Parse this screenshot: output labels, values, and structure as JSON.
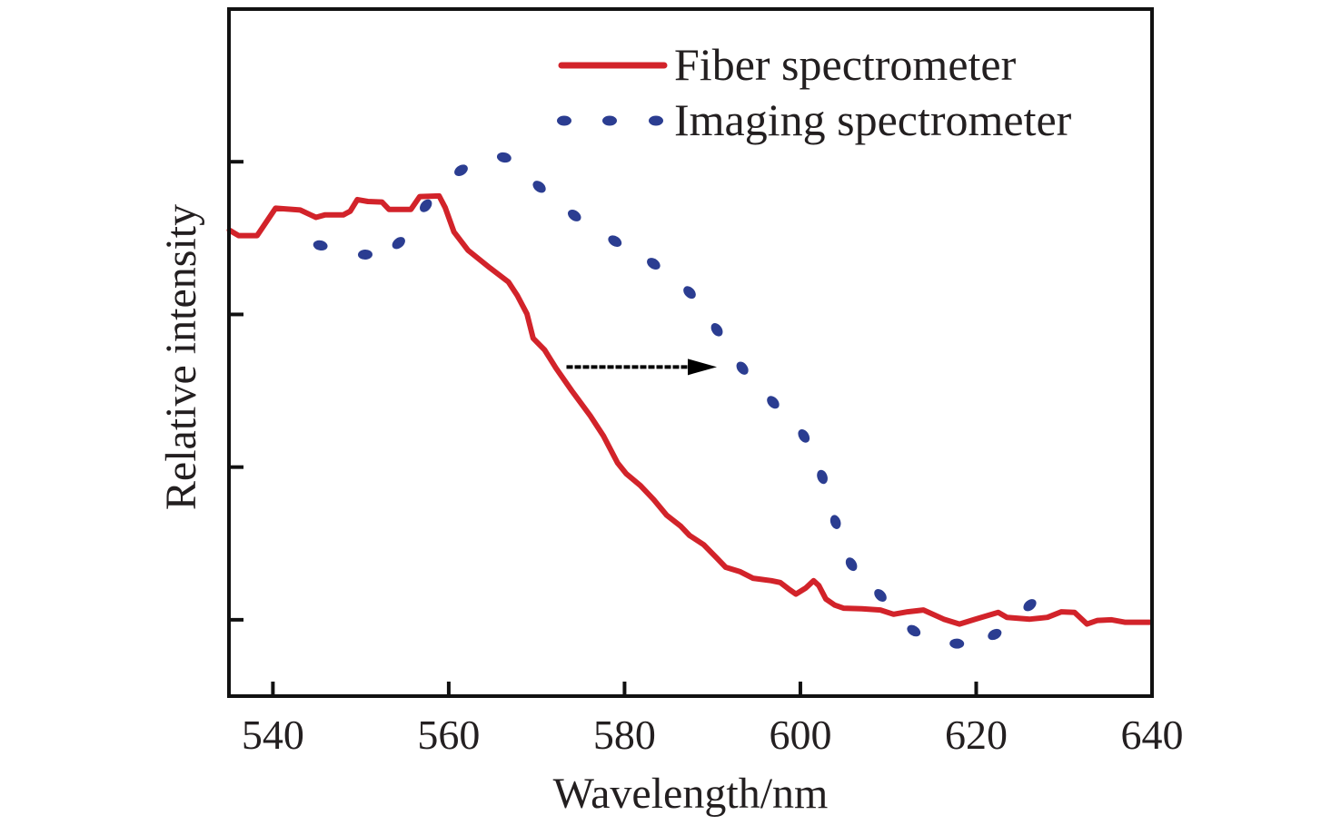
{
  "chart_data": {
    "type": "line",
    "title": "",
    "xlabel": "Wavelength/nm",
    "ylabel": "Relative intensity",
    "xlim": [
      535,
      640
    ],
    "ylim": [
      -0.125,
      1.0
    ],
    "x_ticks": [
      540,
      560,
      580,
      600,
      620,
      640
    ],
    "x_tick_labels": [
      "540",
      "560",
      "580",
      "600",
      "620",
      "640"
    ],
    "y_ticks": [
      0,
      0.25,
      0.5,
      0.75
    ],
    "y_tick_labels": [
      "",
      "",
      "",
      ""
    ],
    "grid": false,
    "legend_position": "top-right",
    "series": [
      {
        "name": "Fiber spectrometer",
        "style": "solid",
        "color": "#D2232A",
        "x": [
          535.05,
          536.1,
          538.2,
          540.3,
          543.1,
          544.3,
          544.9,
          545.9,
          548.0,
          548.8,
          549.6,
          550.8,
          552.4,
          553.2,
          555.7,
          556.7,
          558.9,
          559.6,
          560.6,
          562.2,
          564.7,
          566.8,
          567.8,
          568.9,
          569.6,
          570.9,
          572.2,
          574.0,
          576.1,
          577.6,
          579.2,
          580.2,
          581.8,
          583.3,
          584.8,
          586.4,
          587.4,
          589.0,
          590.5,
          591.5,
          593.1,
          594.6,
          596.7,
          597.7,
          598.8,
          599.5,
          600.6,
          601.5,
          602.1,
          602.9,
          603.9,
          604.9,
          607.0,
          609.1,
          610.6,
          612.2,
          614.0,
          616.3,
          618.1,
          619.9,
          622.5,
          623.5,
          626.1,
          628.1,
          629.7,
          631.2,
          632.6,
          633.8,
          635.4,
          636.9,
          639.8
        ],
        "y": [
          0.638,
          0.629,
          0.629,
          0.674,
          0.671,
          0.663,
          0.659,
          0.663,
          0.663,
          0.669,
          0.688,
          0.685,
          0.684,
          0.672,
          0.672,
          0.693,
          0.694,
          0.675,
          0.635,
          0.605,
          0.576,
          0.553,
          0.531,
          0.501,
          0.461,
          0.442,
          0.412,
          0.375,
          0.334,
          0.301,
          0.257,
          0.239,
          0.22,
          0.197,
          0.171,
          0.153,
          0.138,
          0.123,
          0.101,
          0.086,
          0.079,
          0.068,
          0.064,
          0.061,
          0.049,
          0.042,
          0.052,
          0.064,
          0.056,
          0.034,
          0.024,
          0.019,
          0.018,
          0.016,
          0.009,
          0.013,
          0.016,
          0.001,
          -0.007,
          0.001,
          0.012,
          0.004,
          0.001,
          0.004,
          0.013,
          0.012,
          -0.007,
          -0.001,
          0.0,
          -0.004,
          -0.004
        ]
      },
      {
        "name": "Imaging spectrometer",
        "style": "dotted",
        "color": "#2B3D91",
        "x": [
          545.4,
          550.5,
          554.3,
          557.4,
          561.4,
          566.3,
          570.3,
          574.3,
          578.9,
          583.3,
          587.4,
          590.5,
          593.4,
          596.9,
          600.4,
          602.5,
          604.0,
          605.8,
          609.1,
          612.9,
          617.8,
          622.1,
          626.1
        ],
        "y": [
          0.613,
          0.598,
          0.617,
          0.678,
          0.736,
          0.757,
          0.709,
          0.662,
          0.62,
          0.583,
          0.536,
          0.475,
          0.412,
          0.356,
          0.301,
          0.234,
          0.16,
          0.091,
          0.04,
          -0.018,
          -0.039,
          -0.024,
          0.024
        ]
      }
    ],
    "annotations": [
      {
        "type": "arrow",
        "style": "dotted",
        "color": "#000000",
        "from": [
          573.6,
          0.414
        ],
        "to": [
          590.5,
          0.414
        ],
        "meaning": "spectral shift from fiber to imaging spectrometer"
      }
    ]
  }
}
